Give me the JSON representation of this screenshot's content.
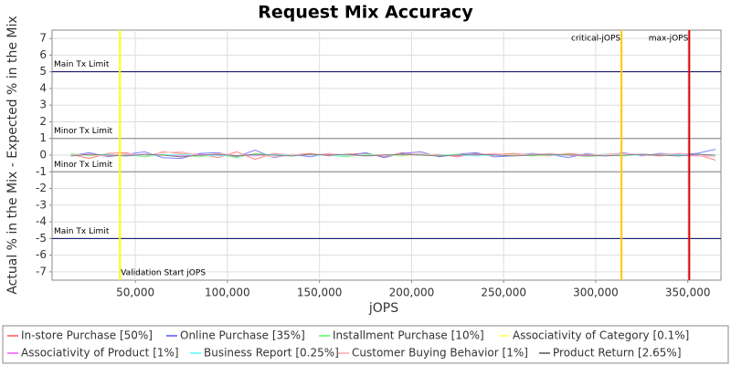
{
  "chart_data": {
    "type": "line",
    "title": "Request Mix Accuracy",
    "x_label": "jOPS",
    "y_label": "Actual % in the Mix - Expected % in the Mix",
    "xlim": [
      4800,
      368000
    ],
    "ylim": [
      -7.5,
      7.5
    ],
    "xticks": [
      {
        "value": 50000,
        "label": "50,000"
      },
      {
        "value": 100000,
        "label": "100,000"
      },
      {
        "value": 150000,
        "label": "150,000"
      },
      {
        "value": 200000,
        "label": "200,000"
      },
      {
        "value": 250000,
        "label": "250,000"
      },
      {
        "value": 300000,
        "label": "300,000"
      },
      {
        "value": 350000,
        "label": "350,000"
      }
    ],
    "yticks": [
      -7,
      -6,
      -5,
      -4,
      -3,
      -2,
      -1,
      0,
      1,
      2,
      3,
      4,
      5,
      6,
      7
    ],
    "grid": true,
    "x": [
      15000,
      25000,
      35000,
      45000,
      55000,
      65000,
      75000,
      85000,
      95000,
      105000,
      115000,
      125000,
      135000,
      145000,
      155000,
      165000,
      175000,
      185000,
      195000,
      205000,
      215000,
      225000,
      235000,
      245000,
      255000,
      265000,
      275000,
      285000,
      295000,
      305000,
      315000,
      325000,
      335000,
      345000,
      355000,
      365000
    ],
    "series": [
      {
        "name": "In-store Purchase [50%]",
        "color": "#ff7f7f",
        "values": [
          0.05,
          -0.2,
          0.1,
          0.15,
          -0.1,
          0.2,
          0.1,
          0.05,
          -0.15,
          0.2,
          -0.25,
          0.1,
          0,
          0.1,
          -0.05,
          0.05,
          0.1,
          -0.1,
          0.15,
          0,
          0.05,
          -0.1,
          0.1,
          0.05,
          0.1,
          0,
          -0.05,
          0.1,
          0,
          0.05,
          0.1,
          0,
          -0.05,
          0.1,
          0.05,
          -0.3
        ]
      },
      {
        "name": "Online Purchase [35%]",
        "color": "#7f7fff",
        "values": [
          -0.05,
          0.15,
          -0.1,
          0.05,
          0.2,
          -0.15,
          -0.2,
          0.1,
          0.15,
          -0.1,
          0.3,
          -0.15,
          0.05,
          -0.1,
          0.1,
          -0.05,
          0.15,
          -0.15,
          0.1,
          0.2,
          -0.1,
          0.05,
          0.15,
          -0.1,
          -0.05,
          0.1,
          0.05,
          -0.15,
          0.1,
          -0.05,
          0.15,
          -0.05,
          0.1,
          0.05,
          0.1,
          0.35
        ]
      },
      {
        "name": "Installment Purchase [10%]",
        "color": "#7fff7f",
        "values": [
          0.1,
          -0.05,
          0,
          0.05,
          -0.1,
          0.05,
          0,
          -0.1,
          0.05,
          -0.15,
          0.1,
          0,
          -0.05,
          0.05,
          0,
          -0.1,
          0.05,
          0,
          -0.05,
          0.05,
          0,
          0.05,
          -0.05,
          0,
          0.05,
          -0.05,
          0,
          0.05,
          -0.1,
          0,
          -0.05,
          0.05,
          0,
          -0.05,
          0.05,
          0
        ]
      },
      {
        "name": "Associativity of Category [0.1%]",
        "color": "#ffff7f",
        "values": [
          0,
          0,
          0.05,
          0,
          0,
          0,
          0.05,
          0,
          0,
          0,
          0,
          0,
          0,
          0,
          0,
          0,
          0,
          0,
          0,
          0,
          0,
          0,
          0,
          0,
          0,
          0,
          0,
          0,
          0,
          0,
          0,
          0,
          0,
          0,
          0,
          0
        ]
      },
      {
        "name": "Associativity of Product [1%]",
        "color": "#ff7fff",
        "values": [
          0,
          0.05,
          -0.05,
          0,
          0.05,
          0,
          -0.05,
          0.05,
          0,
          0,
          -0.05,
          0.05,
          0,
          0,
          0.05,
          0,
          -0.05,
          0,
          0.05,
          0,
          0,
          -0.05,
          0,
          0.05,
          0,
          0,
          0.05,
          0,
          -0.05,
          0,
          0,
          0.05,
          0,
          0,
          -0.05,
          0
        ]
      },
      {
        "name": "Business Report [0.25%]",
        "color": "#7fffff",
        "values": [
          0,
          0,
          0.05,
          -0.05,
          0,
          0,
          0.05,
          0,
          -0.05,
          0,
          0,
          0.05,
          0,
          0,
          0,
          -0.05,
          0,
          0,
          0.05,
          0,
          0,
          0,
          -0.05,
          0,
          0,
          0.05,
          0,
          0,
          0,
          0.05,
          0,
          0,
          0,
          0,
          0.05,
          0
        ]
      },
      {
        "name": "Customer Buying Behavior [1%]",
        "color": "#ffbfbf",
        "values": [
          0.05,
          0,
          -0.05,
          0.1,
          0,
          0.15,
          0.2,
          -0.05,
          0.1,
          0,
          0.05,
          -0.1,
          0.05,
          0,
          0.1,
          0,
          -0.05,
          0.05,
          0,
          0.1,
          -0.05,
          0,
          0.05,
          0.1,
          0,
          0.05,
          0.1,
          0,
          0.05,
          0,
          0.1,
          0,
          0.05,
          0.1,
          0,
          -0.1
        ]
      },
      {
        "name": "Product Return [2.65%]",
        "color": "#808080",
        "values": [
          -0.05,
          0.05,
          0,
          -0.05,
          0.05,
          0,
          -0.1,
          0,
          0.05,
          -0.05,
          0.05,
          0,
          -0.05,
          0.05,
          0,
          0.05,
          -0.05,
          0,
          0.05,
          0,
          -0.05,
          0,
          0.05,
          0,
          -0.05,
          0,
          0.05,
          0,
          0,
          -0.05,
          0,
          0.05,
          0,
          -0.05,
          0.05,
          0
        ]
      }
    ],
    "annotations": [
      {
        "label": "Main Tx Limit",
        "orientation": "horizontal",
        "value": 5,
        "color": "#000066",
        "label_position": "top"
      },
      {
        "label": "Minor Tx Limit",
        "orientation": "horizontal",
        "value": 1,
        "color": "#808080",
        "label_position": "top"
      },
      {
        "label": "Minor Tx Limit",
        "orientation": "horizontal",
        "value": -1,
        "color": "#808080",
        "label_position": "top"
      },
      {
        "label": "Main Tx Limit",
        "orientation": "horizontal",
        "value": -5,
        "color": "#000066",
        "label_position": "top"
      },
      {
        "label": "Validation Start jOPS",
        "orientation": "vertical",
        "value": 41600,
        "color": "#ffff00",
        "label_position": "bottom"
      },
      {
        "label": "critical-jOPS",
        "orientation": "vertical",
        "value": 314000,
        "color": "#ffc800",
        "label_position": "top"
      },
      {
        "label": "max-jOPS",
        "orientation": "vertical",
        "value": 350800,
        "color": "#dd0000",
        "label_position": "top"
      }
    ]
  }
}
